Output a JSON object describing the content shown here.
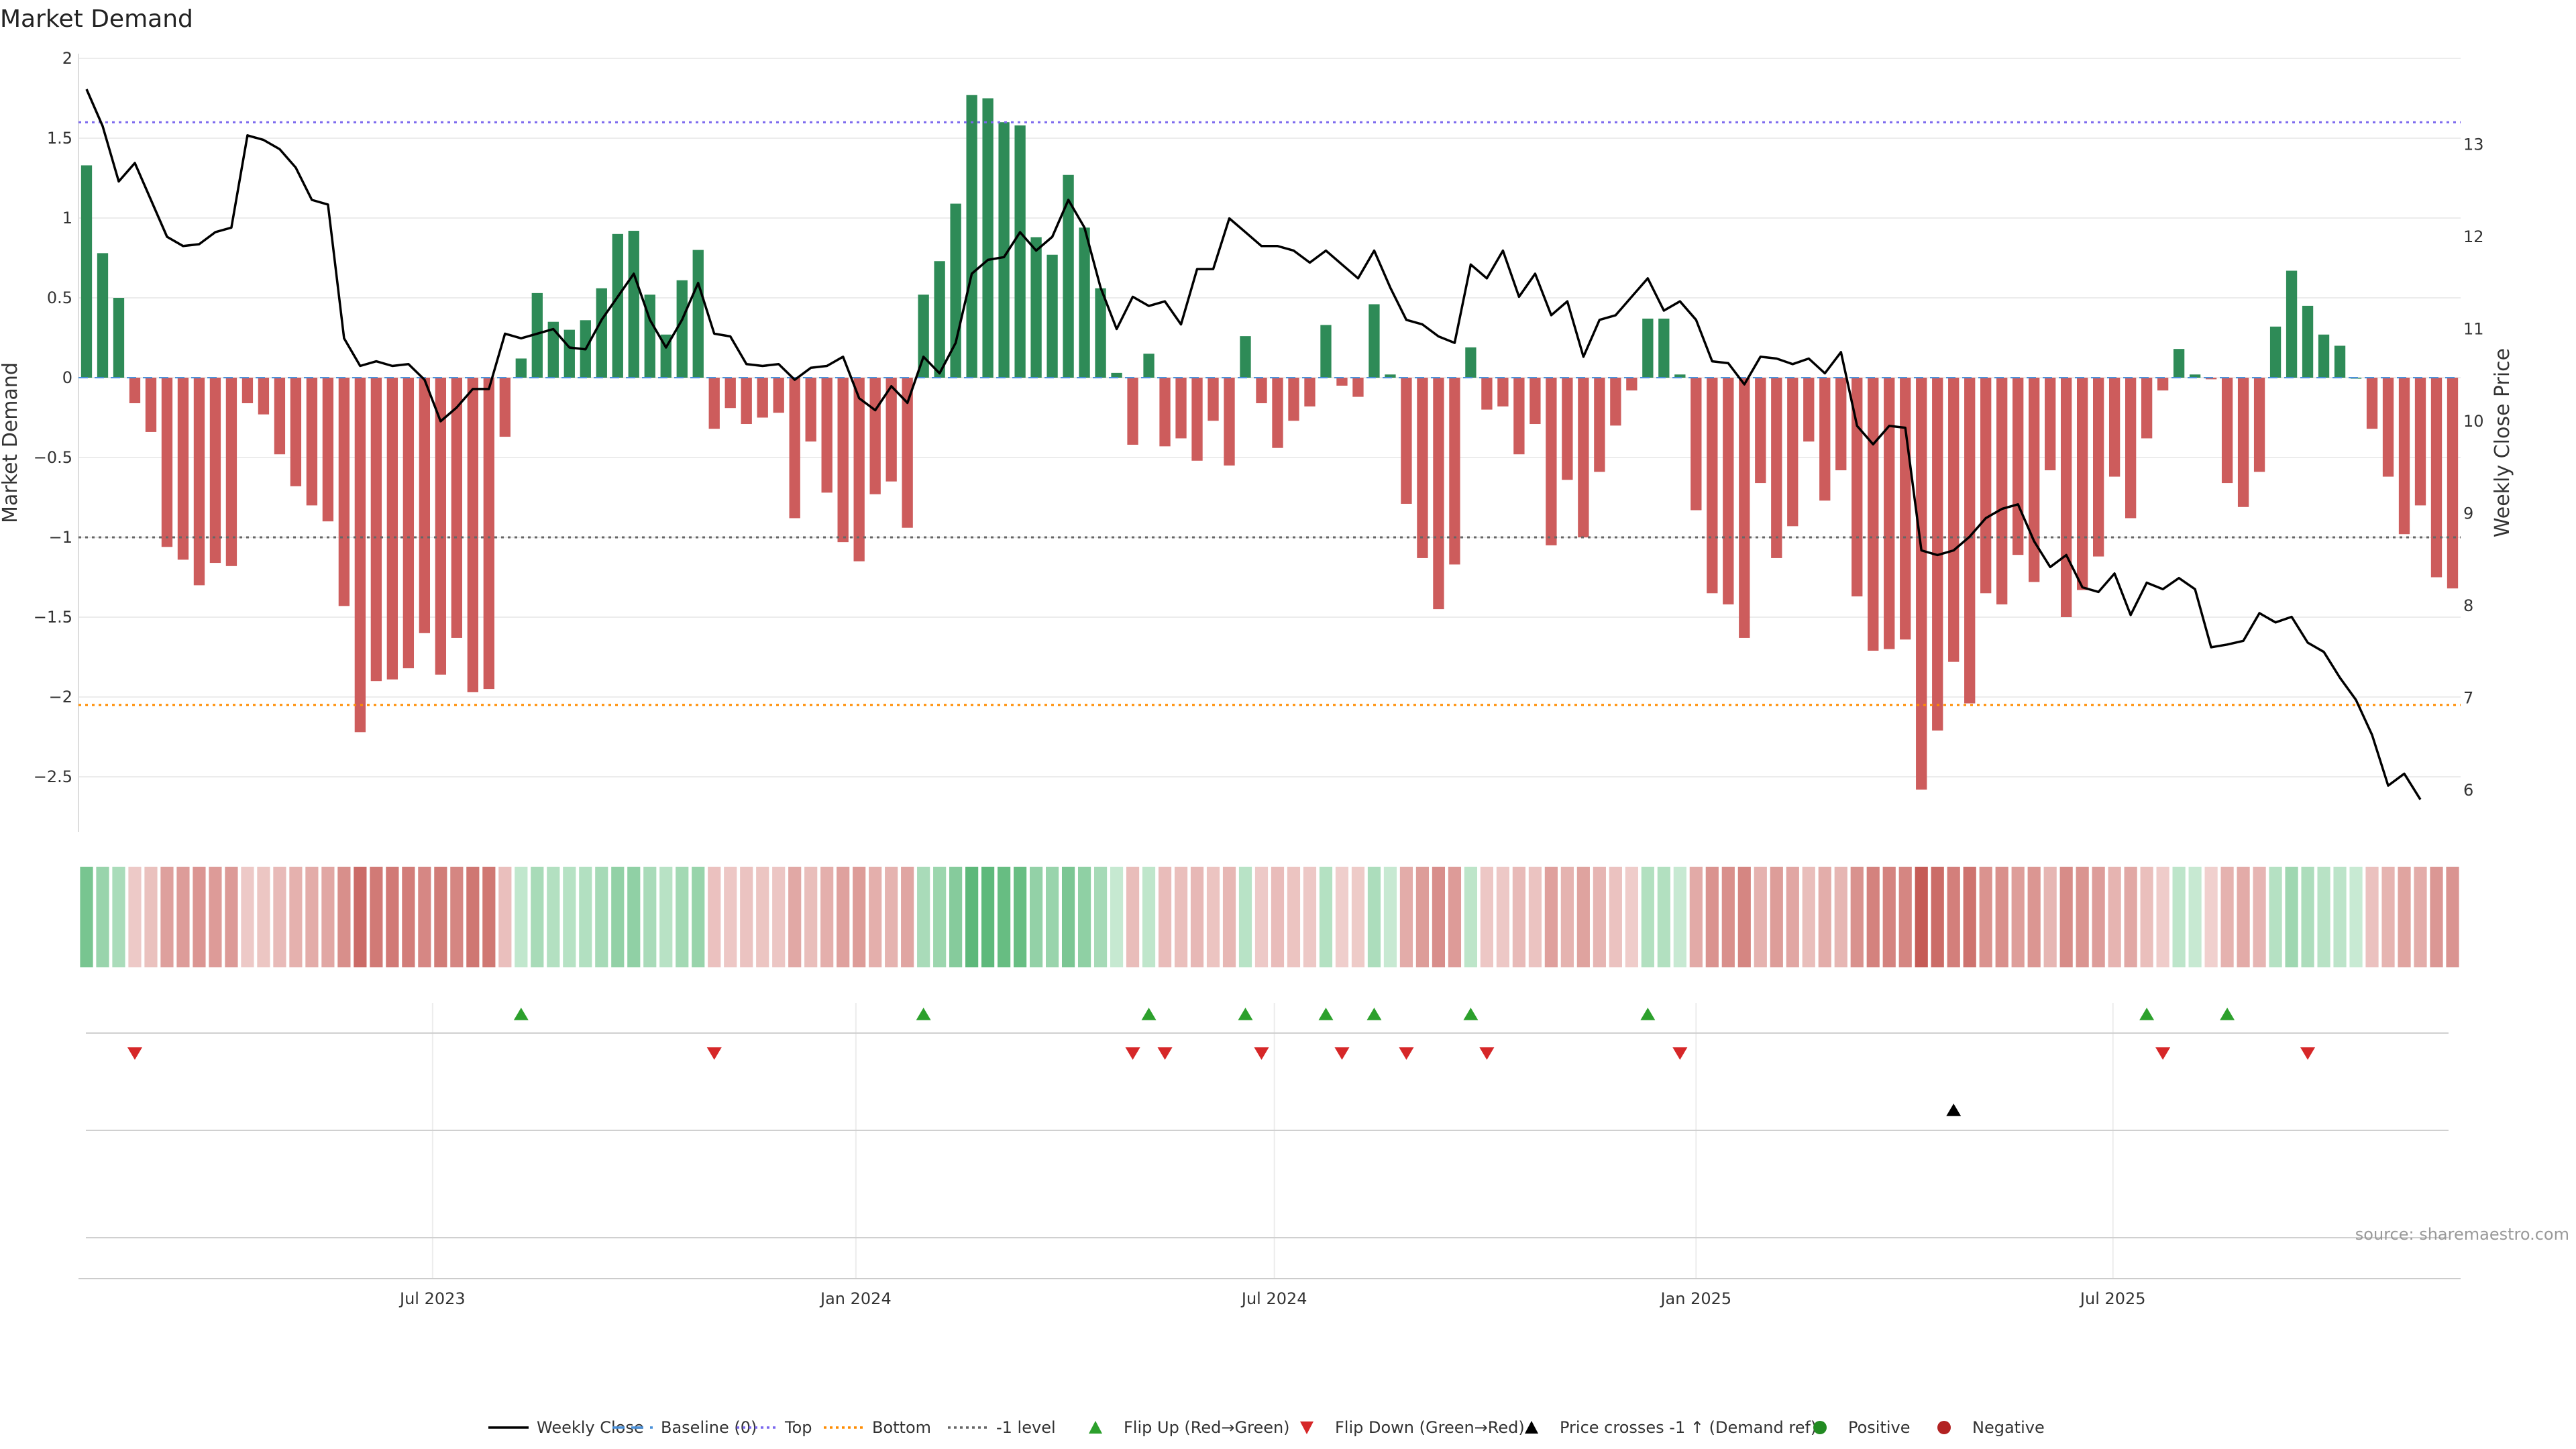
{
  "chart_data": {
    "type": "bar",
    "title": "Market Demand",
    "ylabel": "Market Demand",
    "y2label": "Weekly Close Price",
    "source": "source: sharemaestro.com",
    "ylim": [
      -2.85,
      2.0
    ],
    "y2lim": [
      5.6,
      14.2
    ],
    "yticks": [
      2,
      1.5,
      1,
      0.5,
      0,
      -0.5,
      -1,
      -1.5,
      -2,
      -2.5
    ],
    "ytick_labels": [
      "2",
      "1.5",
      "1",
      "0.5",
      "0",
      "−0.5",
      "−1",
      "−1.5",
      "−2",
      "−2.5"
    ],
    "y2ticks": [
      13,
      12,
      11,
      10,
      9,
      8,
      7,
      6
    ],
    "y2tick_labels": [
      "13",
      "12",
      "11",
      "10",
      "9",
      "8",
      "7",
      "6"
    ],
    "x_tick_labels": [
      "Jul 2023",
      "Jan 2024",
      "Jul 2024",
      "Jan 2025",
      "Jul 2025"
    ],
    "x_tick_weeks": [
      22,
      48.3,
      74.3,
      100.5,
      126.4
    ],
    "reference_lines": {
      "top": 1.6,
      "bottom": -2.05,
      "minus_one": -1,
      "baseline": 0
    },
    "demand": [
      1.33,
      0.78,
      0.5,
      -0.16,
      -0.34,
      -1.06,
      -1.14,
      -1.3,
      -1.16,
      -1.18,
      -0.16,
      -0.23,
      -0.48,
      -0.68,
      -0.8,
      -0.9,
      -1.43,
      -2.22,
      -1.9,
      -1.89,
      -1.82,
      -1.6,
      -1.86,
      -1.63,
      -1.97,
      -1.95,
      -0.37,
      0.12,
      0.53,
      0.35,
      0.3,
      0.36,
      0.56,
      0.9,
      0.92,
      0.52,
      0.27,
      0.61,
      0.8,
      -0.32,
      -0.19,
      -0.29,
      -0.25,
      -0.22,
      -0.88,
      -0.4,
      -0.72,
      -1.03,
      -1.15,
      -0.73,
      -0.65,
      -0.94,
      0.52,
      0.73,
      1.09,
      1.77,
      1.75,
      1.6,
      1.58,
      0.88,
      0.77,
      1.27,
      0.94,
      0.56,
      0.03,
      -0.42,
      0.15,
      -0.43,
      -0.38,
      -0.52,
      -0.27,
      -0.55,
      0.26,
      -0.16,
      -0.44,
      -0.27,
      -0.18,
      0.33,
      -0.05,
      -0.12,
      0.46,
      0.02,
      -0.79,
      -1.13,
      -1.45,
      -1.17,
      0.19,
      -0.2,
      -0.18,
      -0.48,
      -0.29,
      -1.05,
      -0.64,
      -1.0,
      -0.59,
      -0.3,
      -0.08,
      0.37,
      0.37,
      0.02,
      -0.83,
      -1.35,
      -1.42,
      -1.63,
      -0.66,
      -1.13,
      -0.93,
      -0.4,
      -0.77,
      -0.58,
      -1.37,
      -1.71,
      -1.7,
      -1.64,
      -2.58,
      -2.21,
      -1.78,
      -2.04,
      -1.35,
      -1.42,
      -1.11,
      -1.28,
      -0.58,
      -1.5,
      -1.33,
      -1.12,
      -0.62,
      -0.88,
      -0.38,
      -0.08,
      0.18,
      0.02,
      -0.01,
      -0.66,
      -0.81,
      -0.59,
      0.32,
      0.67,
      0.45,
      0.27,
      0.2,
      0.0,
      -0.32,
      -0.62,
      -0.98,
      -0.8,
      -1.25,
      -1.32
    ],
    "price": [
      13.6,
      13.2,
      12.6,
      12.8,
      12.4,
      12.0,
      11.9,
      11.92,
      12.05,
      12.1,
      13.1,
      13.05,
      12.95,
      12.75,
      12.4,
      12.35,
      10.9,
      10.6,
      10.65,
      10.6,
      10.62,
      10.45,
      10.0,
      10.15,
      10.35,
      10.35,
      10.95,
      10.9,
      10.95,
      11.0,
      10.8,
      10.78,
      11.1,
      11.35,
      11.6,
      11.1,
      10.8,
      11.1,
      11.5,
      10.95,
      10.92,
      10.62,
      10.6,
      10.62,
      10.45,
      10.58,
      10.6,
      10.7,
      10.25,
      10.12,
      10.38,
      10.2,
      10.7,
      10.52,
      10.85,
      11.6,
      11.75,
      11.78,
      12.05,
      11.85,
      12.0,
      12.4,
      12.1,
      11.45,
      11.0,
      11.35,
      11.25,
      11.3,
      11.05,
      11.65,
      11.65,
      12.2,
      12.05,
      11.9,
      11.9,
      11.85,
      11.72,
      11.85,
      11.7,
      11.55,
      11.85,
      11.45,
      11.1,
      11.05,
      10.92,
      10.85,
      11.7,
      11.55,
      11.85,
      11.35,
      11.6,
      11.15,
      11.3,
      10.7,
      11.1,
      11.15,
      11.35,
      11.55,
      11.2,
      11.3,
      11.1,
      10.65,
      10.63,
      10.4,
      10.7,
      10.68,
      10.62,
      10.68,
      10.52,
      10.75,
      9.95,
      9.75,
      9.95,
      9.93,
      8.6,
      8.55,
      8.6,
      8.75,
      8.95,
      9.05,
      9.1,
      8.7,
      8.42,
      8.55,
      8.2,
      8.15,
      8.35,
      7.9,
      8.25,
      8.18,
      8.3,
      8.18,
      7.55,
      7.58,
      7.62,
      7.92,
      7.82,
      7.88,
      7.6,
      7.5,
      7.22,
      6.98,
      6.6,
      6.05,
      6.18,
      5.9
    ],
    "flip_up_weeks": [
      27,
      52,
      66,
      72,
      77,
      80,
      86,
      97,
      128,
      133
    ],
    "flip_down_weeks": [
      3,
      39,
      65,
      67,
      73,
      78,
      82,
      87,
      99,
      129,
      138
    ],
    "price_cross_weeks": [
      116
    ],
    "legend": [
      "Weekly Close",
      "Baseline (0)",
      "Top",
      "Bottom",
      "-1 level",
      "Flip Up (Red→Green)",
      "Flip Down (Green→Red)",
      "Price crosses -1 ↑ (Demand ref)",
      "Positive",
      "Negative"
    ],
    "colors": {
      "positive": "#2e8b57",
      "negative": "#cd5c5c",
      "price": "#000000",
      "baseline": "#4a90d9",
      "top": "#7b68ee",
      "bottom": "#ff8c00",
      "minus_one": "#666666",
      "flip_up": "#2ca02c",
      "flip_down": "#d62728",
      "cross": "#000000",
      "legend_positive": "#228b22",
      "legend_negative": "#b22222"
    }
  }
}
